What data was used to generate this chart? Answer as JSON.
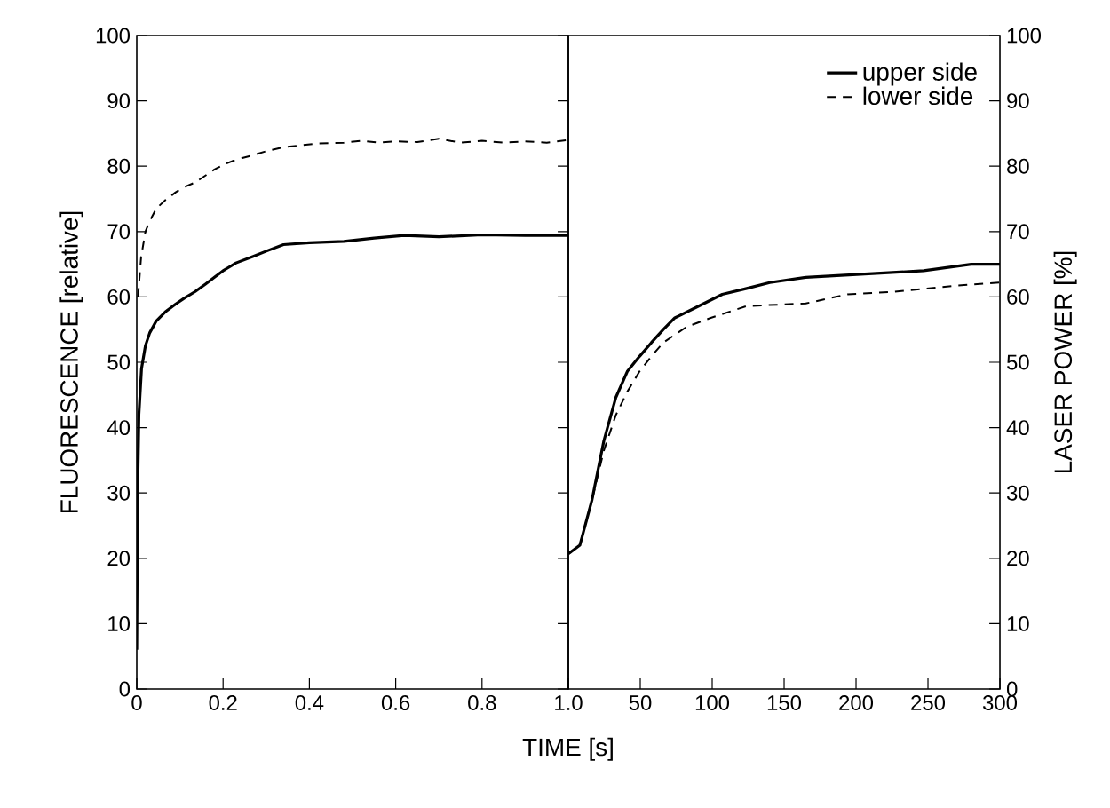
{
  "chart_data": [
    {
      "type": "line",
      "xlabel": "TIME [s]",
      "ylabel": "FLUORESCENCE [relative]",
      "xlim": [
        0,
        1.0
      ],
      "xticks": [
        0,
        0.2,
        0.4,
        0.6,
        0.8,
        {
          "value": 1.0,
          "label": "1.0"
        }
      ],
      "ylim": [
        0,
        100
      ],
      "yticks": [
        0,
        10,
        20,
        30,
        40,
        50,
        60,
        70,
        80,
        90,
        100
      ],
      "legend": false,
      "series": [
        {
          "color": "#000000",
          "line_style": "dashed",
          "x": [
            0.003,
            0.01,
            0.02,
            0.03,
            0.045,
            0.066,
            0.09,
            0.11,
            0.135,
            0.16,
            0.18,
            0.2,
            0.23,
            0.27,
            0.3,
            0.34,
            0.38,
            0.42,
            0.48,
            0.52,
            0.56,
            0.6,
            0.65,
            0.7,
            0.75,
            0.8,
            0.85,
            0.9,
            0.95,
            1.0
          ],
          "values": [
            60,
            66,
            70,
            71.6,
            73.5,
            74.8,
            76,
            76.8,
            77.5,
            78.6,
            79.5,
            80.2,
            81,
            81.7,
            82.3,
            82.9,
            83.2,
            83.5,
            83.6,
            83.9,
            83.6,
            83.8,
            83.7,
            84.2,
            83.6,
            83.9,
            83.6,
            83.8,
            83.6,
            84
          ]
        },
        {
          "color": "#000000",
          "line_style": "solid",
          "x": [
            0,
            0.002,
            0.005,
            0.011,
            0.02,
            0.03,
            0.045,
            0.066,
            0.09,
            0.11,
            0.135,
            0.16,
            0.18,
            0.2,
            0.23,
            0.27,
            0.3,
            0.34,
            0.4,
            0.48,
            0.55,
            0.62,
            0.7,
            0.8,
            0.9,
            1.0
          ],
          "values": [
            6,
            30,
            42,
            49,
            52.5,
            54.5,
            56.3,
            57.7,
            58.9,
            59.8,
            60.8,
            62,
            63,
            64,
            65.2,
            66.2,
            67,
            68,
            68.3,
            68.5,
            69,
            69.4,
            69.2,
            69.5,
            69.4,
            69.4
          ]
        }
      ]
    },
    {
      "type": "line",
      "xlim": [
        0,
        300
      ],
      "xticks": [
        {
          "value": 0,
          "label": null
        },
        50,
        100,
        150,
        200,
        250,
        300
      ],
      "y2label": "LASER POWER [%]",
      "y2lim": [
        0,
        100
      ],
      "y2ticks": [
        0,
        10,
        20,
        30,
        40,
        50,
        60,
        70,
        80,
        90,
        100
      ],
      "legend": "top right",
      "series": [
        {
          "name": "upper side",
          "color": "#000000",
          "line_style": "solid",
          "axis": "y2",
          "x": [
            0,
            8,
            16.5,
            24.7,
            33,
            41,
            49.5,
            57.7,
            66,
            74,
            90.6,
            107,
            124,
            140,
            165,
            247,
            280,
            300
          ],
          "values": [
            20.7,
            22,
            29,
            38,
            44.6,
            48.6,
            50.9,
            53,
            55,
            56.8,
            58.6,
            60.4,
            61.3,
            62.2,
            63,
            64,
            65,
            65
          ]
        },
        {
          "name": "lower side",
          "color": "#000000",
          "line_style": "dashed",
          "axis": "y2",
          "x": [
            0,
            8,
            16.5,
            24.7,
            33,
            41,
            49.5,
            57.7,
            66,
            82,
            99,
            124,
            165,
            194,
            227,
            268,
            300
          ],
          "values": [
            20.7,
            22,
            29,
            36.5,
            41.9,
            45.5,
            48.6,
            50.9,
            53,
            55.4,
            56.8,
            58.6,
            59,
            60.4,
            60.8,
            61.7,
            62.2
          ]
        }
      ]
    }
  ]
}
